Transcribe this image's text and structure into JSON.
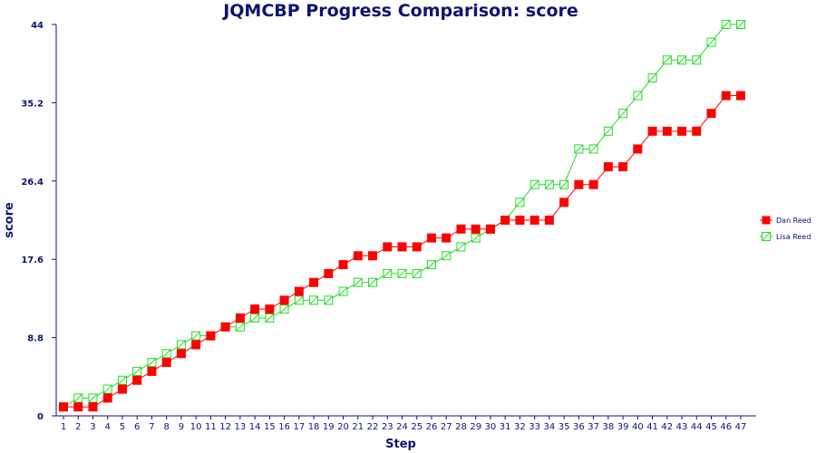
{
  "chart_data": {
    "type": "line",
    "title": "JQMCBP Progress Comparison: score",
    "xlabel": "Step",
    "ylabel": "score",
    "x": [
      1,
      2,
      3,
      4,
      5,
      6,
      7,
      8,
      9,
      10,
      11,
      12,
      13,
      14,
      15,
      16,
      17,
      18,
      19,
      20,
      21,
      22,
      23,
      24,
      25,
      26,
      27,
      28,
      29,
      30,
      31,
      32,
      33,
      34,
      35,
      36,
      37,
      38,
      39,
      40,
      41,
      42,
      43,
      44,
      45,
      46,
      47
    ],
    "ylim": [
      0,
      44
    ],
    "yticks": [
      "0",
      "8.8",
      "17.6",
      "26.4",
      "35.2",
      "44"
    ],
    "legend_position": "right",
    "grid": false,
    "series": [
      {
        "name": "Dan Reed",
        "color": "#ff0000",
        "marker": "filled-square",
        "values": [
          1,
          1,
          1,
          2,
          3,
          4,
          5,
          6,
          7,
          8,
          9,
          10,
          11,
          12,
          12,
          13,
          14,
          15,
          16,
          17,
          18,
          18,
          19,
          19,
          19,
          20,
          20,
          21,
          21,
          21,
          22,
          22,
          22,
          22,
          24,
          26,
          26,
          28,
          28,
          30,
          32,
          32,
          32,
          32,
          34,
          36,
          36
        ]
      },
      {
        "name": "Lisa Reed",
        "color": "#22dd22",
        "marker": "open-square",
        "values": [
          1,
          2,
          2,
          3,
          4,
          5,
          6,
          7,
          8,
          9,
          9,
          10,
          10,
          11,
          11,
          12,
          13,
          13,
          13,
          14,
          15,
          15,
          16,
          16,
          16,
          17,
          18,
          19,
          20,
          21,
          22,
          24,
          26,
          26,
          26,
          30,
          30,
          32,
          34,
          36,
          38,
          40,
          40,
          40,
          42,
          44,
          44
        ]
      }
    ]
  }
}
